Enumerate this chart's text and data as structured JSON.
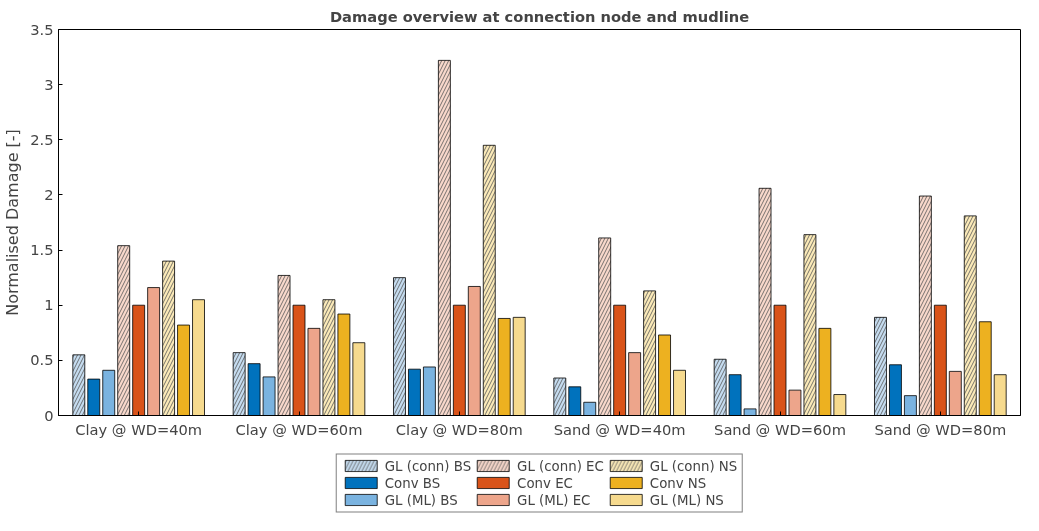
{
  "chart_data": {
    "type": "bar",
    "title": "Damage overview at connection node and mudline",
    "ylabel": "Normalised Damage [-]",
    "categories": [
      "Clay @ WD=40m",
      "Clay @ WD=60m",
      "Clay @ WD=80m",
      "Sand @ WD=40m",
      "Sand @ WD=60m",
      "Sand @ WD=80m"
    ],
    "ylim": [
      0,
      3.5
    ],
    "yticks": [
      0,
      0.5,
      1,
      1.5,
      2,
      2.5,
      3,
      3.5
    ],
    "grid": false,
    "legend": "bottom",
    "series": [
      {
        "name": "GL (conn) BS",
        "color": "#c5dcf0",
        "values": [
          0.55,
          0.57,
          1.25,
          0.34,
          0.51,
          0.89
        ]
      },
      {
        "name": "Conv BS",
        "color": "#0072bd",
        "values": [
          0.33,
          0.47,
          0.42,
          0.26,
          0.37,
          0.46
        ]
      },
      {
        "name": "GL (ML) BS",
        "color": "#7ab3e0",
        "values": [
          0.41,
          0.35,
          0.44,
          0.12,
          0.06,
          0.18
        ]
      },
      {
        "name": "GL (conn) EC",
        "color": "#f8d8cb",
        "values": [
          1.54,
          1.27,
          3.22,
          1.61,
          2.06,
          1.99
        ]
      },
      {
        "name": "Conv EC",
        "color": "#d95319",
        "values": [
          1.0,
          1.0,
          1.0,
          1.0,
          1.0,
          1.0
        ]
      },
      {
        "name": "GL (ML) EC",
        "color": "#eda58b",
        "values": [
          1.16,
          0.79,
          1.17,
          0.57,
          0.23,
          0.4
        ]
      },
      {
        "name": "GL (conn) NS",
        "color": "#fbeab8",
        "values": [
          1.4,
          1.05,
          2.45,
          1.13,
          1.64,
          1.81
        ]
      },
      {
        "name": "Conv NS",
        "color": "#edb120",
        "values": [
          0.82,
          0.92,
          0.88,
          0.73,
          0.79,
          0.85
        ]
      },
      {
        "name": "GL (ML) NS",
        "color": "#f6da8e",
        "values": [
          1.05,
          0.66,
          0.89,
          0.41,
          0.19,
          0.37
        ]
      }
    ]
  }
}
